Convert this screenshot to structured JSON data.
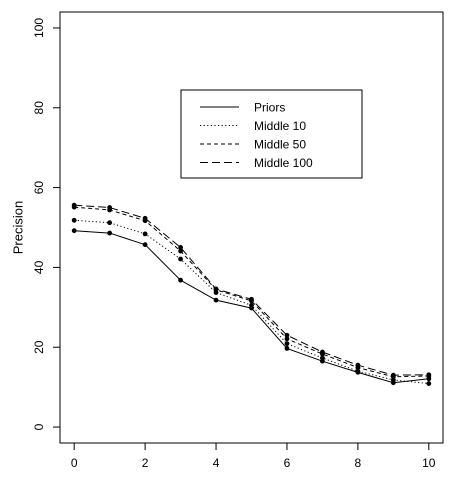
{
  "chart_data": {
    "type": "line",
    "title": "",
    "xlabel": "",
    "ylabel": "Precision",
    "xlim": [
      0,
      10
    ],
    "ylim": [
      0,
      100
    ],
    "x_ticks": [
      0,
      2,
      4,
      6,
      8,
      10
    ],
    "y_ticks": [
      0,
      20,
      40,
      60,
      80,
      100
    ],
    "grid": false,
    "legend_position": "top-center",
    "x": [
      0,
      1,
      2,
      3,
      4,
      5,
      6,
      7,
      8,
      9,
      10
    ],
    "series": [
      {
        "name": "Priors",
        "line_style": "solid",
        "values": [
          49.2,
          48.6,
          45.7,
          36.8,
          31.8,
          29.8,
          19.7,
          16.5,
          13.7,
          11.1,
          12.1
        ]
      },
      {
        "name": "Middle 10",
        "line_style": "dotted",
        "values": [
          51.8,
          51.2,
          48.4,
          42.1,
          33.7,
          30.5,
          20.9,
          17.3,
          14.0,
          11.8,
          10.9
        ]
      },
      {
        "name": "Middle 50",
        "line_style": "dashed",
        "values": [
          55.1,
          54.4,
          51.7,
          44.1,
          34.4,
          31.6,
          22.1,
          18.3,
          14.9,
          12.6,
          12.8
        ]
      },
      {
        "name": "Middle 100",
        "line_style": "longdash",
        "values": [
          55.6,
          55.0,
          52.3,
          45.0,
          34.6,
          32.0,
          23.0,
          18.8,
          15.5,
          13.0,
          13.1
        ]
      }
    ]
  }
}
